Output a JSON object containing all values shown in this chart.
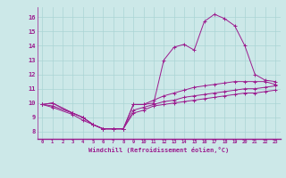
{
  "xlabel": "Windchill (Refroidissement éolien,°C)",
  "ylabel": "",
  "background_color": "#cce8e8",
  "line_color": "#9b1b8e",
  "grid_color": "#aad4d4",
  "xlim": [
    -0.5,
    23.5
  ],
  "ylim": [
    7.5,
    16.7
  ],
  "xticks": [
    0,
    1,
    2,
    3,
    4,
    5,
    6,
    7,
    8,
    9,
    10,
    11,
    12,
    13,
    14,
    15,
    16,
    17,
    18,
    19,
    20,
    21,
    22,
    23
  ],
  "yticks": [
    8,
    9,
    10,
    11,
    12,
    13,
    14,
    15,
    16
  ],
  "series": [
    {
      "x": [
        0,
        1,
        3,
        4,
        5,
        6,
        7,
        8,
        9,
        10,
        11,
        12,
        13,
        14,
        15,
        16,
        17,
        18,
        19,
        20,
        21,
        22,
        23
      ],
      "y": [
        9.9,
        10.0,
        9.3,
        9.0,
        8.5,
        8.2,
        8.2,
        8.2,
        9.9,
        9.9,
        10.0,
        13.0,
        13.9,
        14.1,
        13.7,
        15.7,
        16.2,
        15.9,
        15.4,
        14.0,
        12.0,
        11.6,
        11.5
      ]
    },
    {
      "x": [
        0,
        1,
        3,
        4,
        5,
        6,
        7,
        8,
        9,
        10,
        11,
        12,
        13,
        14,
        15,
        16,
        17,
        18,
        19,
        20,
        21,
        22,
        23
      ],
      "y": [
        9.9,
        10.0,
        9.3,
        9.0,
        8.5,
        8.2,
        8.2,
        8.2,
        9.9,
        9.9,
        10.2,
        10.5,
        10.7,
        10.9,
        11.1,
        11.2,
        11.3,
        11.4,
        11.5,
        11.5,
        11.5,
        11.5,
        11.3
      ]
    },
    {
      "x": [
        0,
        1,
        3,
        4,
        5,
        6,
        7,
        8,
        9,
        10,
        11,
        12,
        13,
        14,
        15,
        16,
        17,
        18,
        19,
        20,
        21,
        22,
        23
      ],
      "y": [
        9.9,
        9.8,
        9.3,
        9.0,
        8.5,
        8.2,
        8.2,
        8.2,
        9.5,
        9.7,
        9.9,
        10.1,
        10.2,
        10.4,
        10.5,
        10.6,
        10.7,
        10.8,
        10.9,
        11.0,
        11.0,
        11.1,
        11.2
      ]
    },
    {
      "x": [
        0,
        1,
        3,
        4,
        5,
        6,
        7,
        8,
        9,
        10,
        11,
        12,
        13,
        14,
        15,
        16,
        17,
        18,
        19,
        20,
        21,
        22,
        23
      ],
      "y": [
        9.9,
        9.7,
        9.2,
        8.8,
        8.5,
        8.2,
        8.2,
        8.2,
        9.3,
        9.5,
        9.8,
        9.9,
        10.0,
        10.1,
        10.2,
        10.3,
        10.4,
        10.5,
        10.6,
        10.7,
        10.7,
        10.8,
        10.9
      ]
    }
  ]
}
